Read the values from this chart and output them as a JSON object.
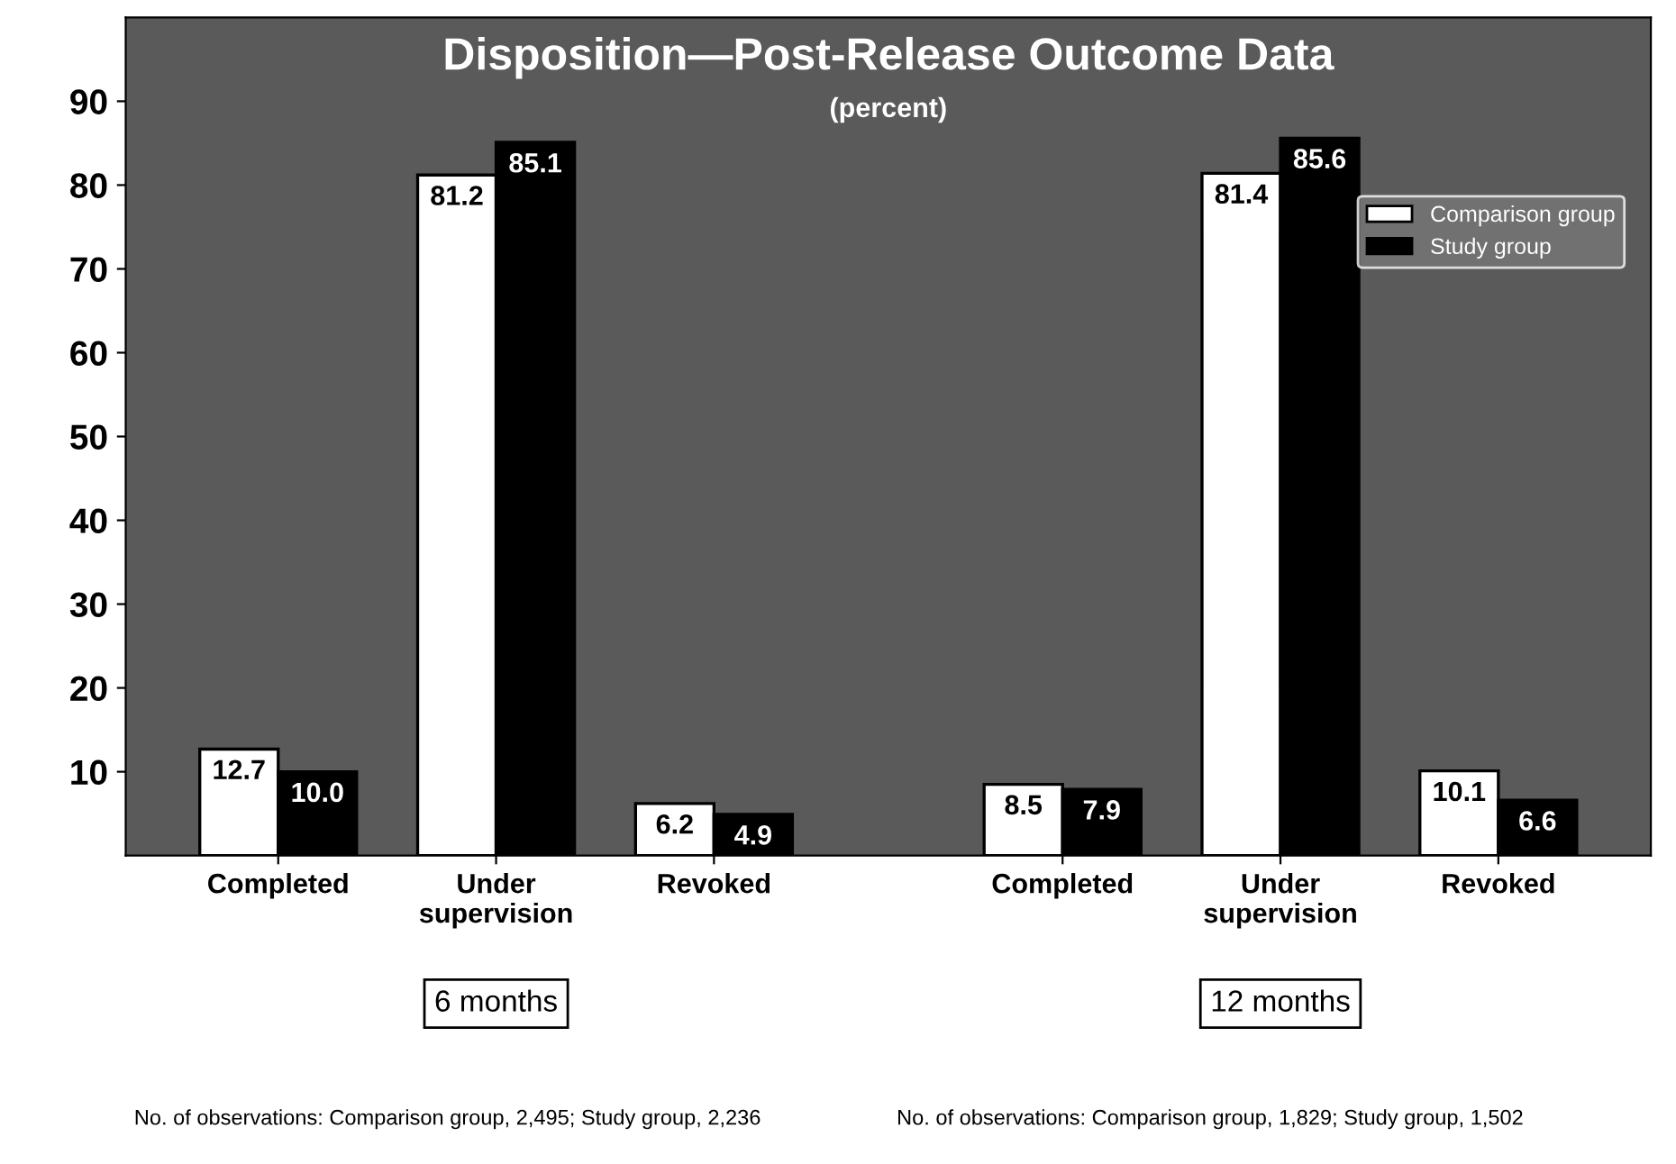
{
  "chart_data": {
    "type": "bar",
    "title": "Disposition—Post-Release Outcome Data",
    "subtitle": "(percent)",
    "categories": [
      "Completed",
      "Under\nsupervision",
      "Revoked",
      "Completed",
      "Under\nsupervision",
      "Revoked"
    ],
    "series": [
      {
        "name": "Comparison group",
        "color": "#ffffff",
        "values": [
          12.7,
          81.2,
          6.2,
          8.5,
          81.4,
          10.1
        ],
        "value_labels": [
          "12.7",
          "81.2",
          "6.2",
          "8.5",
          "81.4",
          "10.1"
        ]
      },
      {
        "name": "Study group",
        "color": "#000000",
        "values": [
          10.0,
          85.1,
          4.9,
          7.9,
          85.6,
          6.6
        ],
        "value_labels": [
          "10.0",
          "85.1",
          "4.9",
          "7.9",
          "85.6",
          "6.6"
        ]
      }
    ],
    "ylim": [
      0,
      100
    ],
    "yticks": [
      10,
      20,
      30,
      40,
      50,
      60,
      70,
      80,
      90
    ],
    "grid": false,
    "legend": "top right",
    "annotations": [
      "6 months",
      "12 months",
      "No. of observations: Comparison group, 2,495; Study group, 2,236",
      "No. of observations: Comparison group, 1,829; Study group, 1,502"
    ]
  }
}
